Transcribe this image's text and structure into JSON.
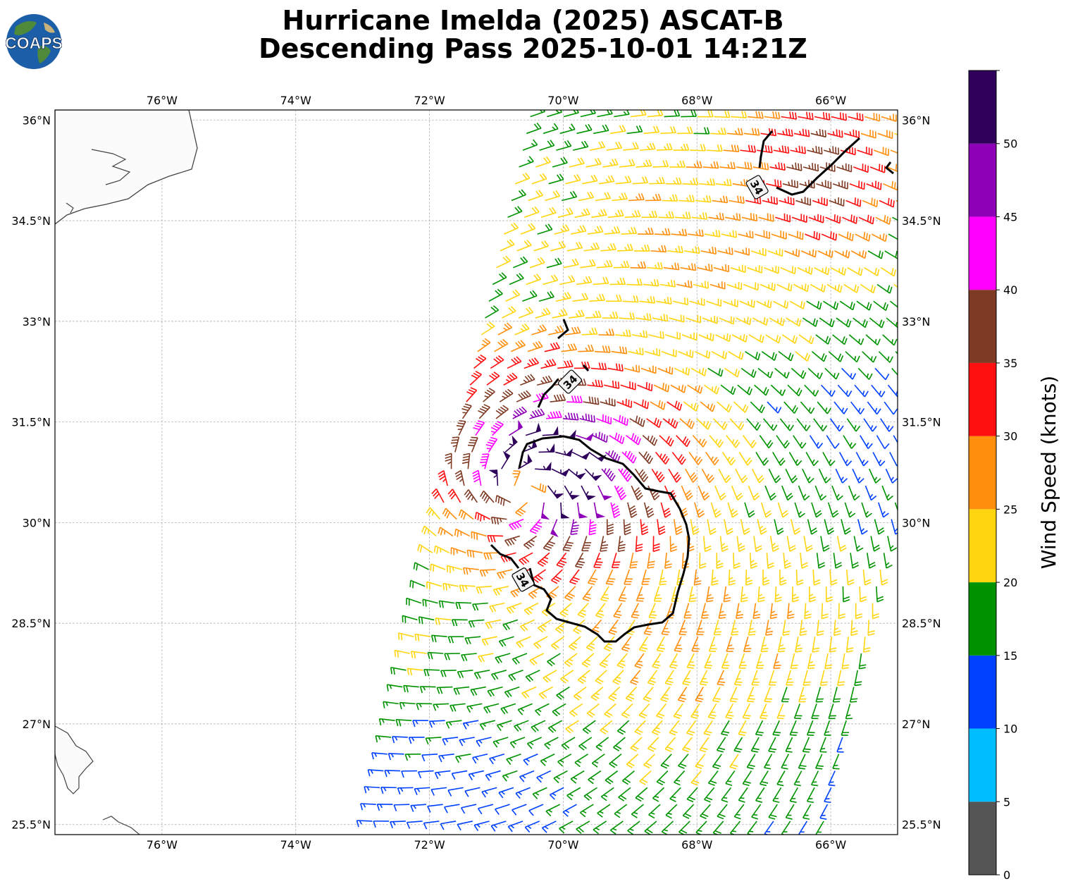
{
  "title": {
    "line1": "Hurricane Imelda (2025) ASCAT-B",
    "line2": "Descending Pass 2025-10-01 14:21Z"
  },
  "logo": {
    "text": "COAPS"
  },
  "map": {
    "lon_range": [
      -77.6,
      -65.0
    ],
    "lat_range": [
      25.35,
      36.15
    ],
    "lon_ticks": [
      {
        "value": -76,
        "label": "76°W"
      },
      {
        "value": -74,
        "label": "74°W"
      },
      {
        "value": -72,
        "label": "72°W"
      },
      {
        "value": -70,
        "label": "70°W"
      },
      {
        "value": -68,
        "label": "68°W"
      },
      {
        "value": -66,
        "label": "66°W"
      }
    ],
    "lat_ticks": [
      {
        "value": 36,
        "label": "36°N"
      },
      {
        "value": 34.5,
        "label": "34.5°N"
      },
      {
        "value": 33,
        "label": "33°N"
      },
      {
        "value": 31.5,
        "label": "31.5°N"
      },
      {
        "value": 30,
        "label": "30°N"
      },
      {
        "value": 28.5,
        "label": "28.5°N"
      },
      {
        "value": 27,
        "label": "27°N"
      },
      {
        "value": 25.5,
        "label": "25.5°N"
      }
    ],
    "grid": true,
    "contour_label": "34",
    "contour_label_positions": [
      {
        "lon": -67.1,
        "lat": 35.0
      },
      {
        "lon": -69.9,
        "lat": 32.1
      },
      {
        "lon": -70.6,
        "lat": 29.15
      }
    ],
    "storm_center": {
      "lon": -70.6,
      "lat": 30.45
    }
  },
  "colorbar": {
    "label": "Wind Speed (knots)",
    "ticks": [
      "0",
      "5",
      "10",
      "15",
      "20",
      "25",
      "30",
      "35",
      "40",
      "45",
      "50"
    ],
    "bins": [
      {
        "min": 0,
        "max": 5,
        "color": "#555555"
      },
      {
        "min": 5,
        "max": 10,
        "color": "#00bfff"
      },
      {
        "min": 10,
        "max": 15,
        "color": "#0041ff"
      },
      {
        "min": 15,
        "max": 20,
        "color": "#009300"
      },
      {
        "min": 20,
        "max": 25,
        "color": "#ffd510"
      },
      {
        "min": 25,
        "max": 30,
        "color": "#ff8f0d"
      },
      {
        "min": 30,
        "max": 35,
        "color": "#ff1010"
      },
      {
        "min": 35,
        "max": 40,
        "color": "#7f3a23"
      },
      {
        "min": 40,
        "max": 45,
        "color": "#ff00ff"
      },
      {
        "min": 45,
        "max": 50,
        "color": "#8d00b7"
      },
      {
        "min": 50,
        "max": 55,
        "color": "#2e005b"
      }
    ]
  }
}
